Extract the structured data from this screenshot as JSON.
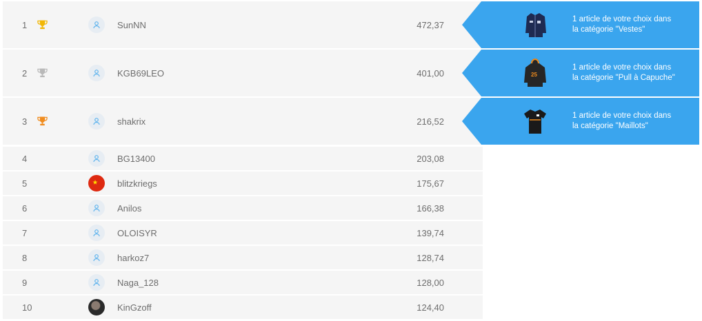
{
  "leaderboard": {
    "rows": [
      {
        "rank": "1",
        "name": "SunNN",
        "score": "472,37",
        "trophy": "gold-trophy-icon",
        "avatar": "user-icon"
      },
      {
        "rank": "2",
        "name": "KGB69LEO",
        "score": "401,00",
        "trophy": "silver-trophy-icon",
        "avatar": "user-icon"
      },
      {
        "rank": "3",
        "name": "shakrix",
        "score": "216,52",
        "trophy": "bronze-trophy-icon",
        "avatar": "user-icon"
      },
      {
        "rank": "4",
        "name": "BG13400",
        "score": "203,08",
        "avatar": "user-icon"
      },
      {
        "rank": "5",
        "name": "blitzkriegs",
        "score": "175,67",
        "avatar": "china-flag-avatar"
      },
      {
        "rank": "6",
        "name": "Anilos",
        "score": "166,38",
        "avatar": "user-icon"
      },
      {
        "rank": "7",
        "name": "OLOISYR",
        "score": "139,74",
        "avatar": "user-icon"
      },
      {
        "rank": "8",
        "name": "harkoz7",
        "score": "128,74",
        "avatar": "user-icon"
      },
      {
        "rank": "9",
        "name": "Naga_128",
        "score": "128,00",
        "avatar": "user-icon"
      },
      {
        "rank": "10",
        "name": "KinGzoff",
        "score": "124,40",
        "avatar": "photo-avatar"
      }
    ],
    "prizes": [
      {
        "line1": "1 article de votre choix dans",
        "line2": "la catégorie \"Vestes\"",
        "icon": "jacket-icon"
      },
      {
        "line1": "1 article de votre choix dans",
        "line2": "la catégorie \"Pull à Capuche\"",
        "icon": "hoodie-icon"
      },
      {
        "line1": "1 article de votre choix dans",
        "line2": "la catégorie \"Maillots\"",
        "icon": "jersey-icon"
      }
    ]
  },
  "colors": {
    "accent": "#3aa5ee",
    "gold": "#f2b705",
    "silver": "#b9b9b9",
    "bronze": "#f08c1e",
    "row_bg": "#f5f5f5"
  }
}
